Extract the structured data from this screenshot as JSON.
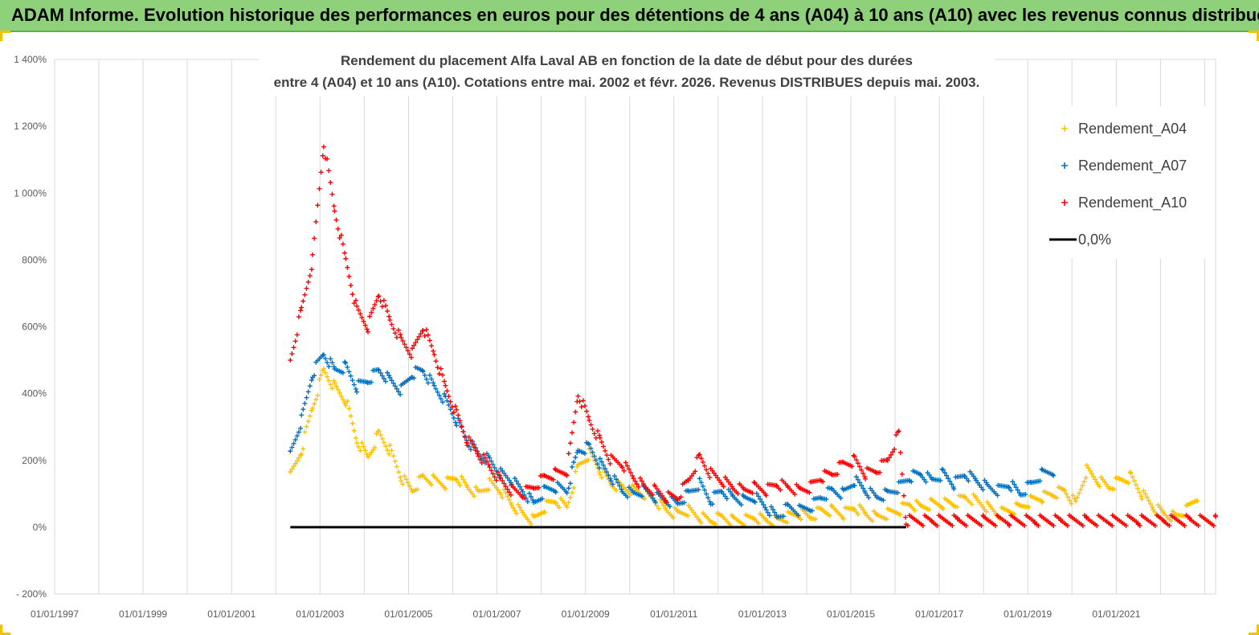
{
  "header": {
    "title": "ADAM Informe. Evolution historique des performances en euros pour des détentions de 4 ans (A04) à 10 ans (A10) avec les revenus connus distribués"
  },
  "chart_data": {
    "type": "scatter",
    "title_lines": [
      "Rendement du placement Alfa Laval AB en fonction de la date de début pour des durées",
      "entre 4 (A04) et 10 ans (A10). Cotations entre mai. 2002 et févr. 2026. Revenus DISTRIBUES depuis mai. 2003."
    ],
    "xlim": [
      "1997-01-01",
      "2023-04-01"
    ],
    "ylim": [
      -200,
      1400
    ],
    "x_ticks": [
      "01/01/1997",
      "01/01/1999",
      "01/01/2001",
      "01/01/2003",
      "01/01/2005",
      "01/01/2007",
      "01/01/2009",
      "01/01/2011",
      "01/01/2013",
      "01/01/2015",
      "01/01/2017",
      "01/01/2019",
      "01/01/2021"
    ],
    "y_ticks": [
      {
        "value": 1400,
        "label": "1 400%"
      },
      {
        "value": 1200,
        "label": "1 200%"
      },
      {
        "value": 1000,
        "label": "1 000%"
      },
      {
        "value": 800,
        "label": "800%"
      },
      {
        "value": 600,
        "label": "600%"
      },
      {
        "value": 400,
        "label": "400%"
      },
      {
        "value": 200,
        "label": "200%"
      },
      {
        "value": 0,
        "label": "0%"
      },
      {
        "value": -200,
        "label": "- 200%"
      }
    ],
    "grid": "vertical",
    "legend_position": "top-right",
    "series": [
      {
        "name": "Rendement_A04",
        "color": "#ffc000",
        "marker": "+",
        "points": [
          [
            "2002-05-01",
            150
          ],
          [
            "2002-08-01",
            230
          ],
          [
            "2002-11-01",
            360
          ],
          [
            "2003-02-01",
            470
          ],
          [
            "2003-05-01",
            420
          ],
          [
            "2003-08-01",
            380
          ],
          [
            "2003-11-01",
            260
          ],
          [
            "2004-02-01",
            210
          ],
          [
            "2004-05-01",
            280
          ],
          [
            "2004-08-01",
            230
          ],
          [
            "2004-11-01",
            150
          ],
          [
            "2005-02-01",
            110
          ],
          [
            "2005-05-01",
            150
          ],
          [
            "2005-08-01",
            140
          ],
          [
            "2005-11-01",
            130
          ],
          [
            "2006-02-01",
            150
          ],
          [
            "2006-05-01",
            120
          ],
          [
            "2006-08-01",
            100
          ],
          [
            "2006-11-01",
            130
          ],
          [
            "2007-02-01",
            110
          ],
          [
            "2007-05-01",
            70
          ],
          [
            "2007-08-01",
            40
          ],
          [
            "2007-11-01",
            20
          ],
          [
            "2008-02-01",
            60
          ],
          [
            "2008-05-01",
            80
          ],
          [
            "2008-08-01",
            60
          ],
          [
            "2008-11-01",
            180
          ],
          [
            "2009-02-01",
            220
          ],
          [
            "2009-05-01",
            170
          ],
          [
            "2009-08-01",
            130
          ],
          [
            "2009-11-01",
            120
          ],
          [
            "2010-02-01",
            110
          ],
          [
            "2010-05-01",
            100
          ],
          [
            "2010-08-01",
            80
          ],
          [
            "2010-11-01",
            50
          ],
          [
            "2011-02-01",
            40
          ],
          [
            "2011-05-01",
            50
          ],
          [
            "2011-08-01",
            30
          ],
          [
            "2011-11-01",
            20
          ],
          [
            "2012-02-01",
            30
          ],
          [
            "2012-05-01",
            20
          ],
          [
            "2012-08-01",
            20
          ],
          [
            "2012-11-01",
            30
          ],
          [
            "2013-02-01",
            20
          ],
          [
            "2013-05-01",
            20
          ],
          [
            "2013-08-01",
            30
          ],
          [
            "2013-11-01",
            40
          ],
          [
            "2014-02-01",
            30
          ],
          [
            "2014-05-01",
            50
          ],
          [
            "2014-08-01",
            50
          ],
          [
            "2014-11-01",
            40
          ],
          [
            "2015-02-01",
            60
          ],
          [
            "2015-05-01",
            40
          ],
          [
            "2015-08-01",
            30
          ],
          [
            "2015-11-01",
            40
          ],
          [
            "2016-02-01",
            50
          ],
          [
            "2016-05-01",
            70
          ],
          [
            "2016-08-01",
            60
          ],
          [
            "2016-11-01",
            70
          ],
          [
            "2017-02-01",
            70
          ],
          [
            "2017-05-01",
            70
          ],
          [
            "2017-08-01",
            90
          ],
          [
            "2017-11-01",
            80
          ],
          [
            "2018-02-01",
            60
          ],
          [
            "2018-05-01",
            40
          ],
          [
            "2018-08-01",
            50
          ],
          [
            "2018-11-01",
            60
          ],
          [
            "2019-02-01",
            80
          ],
          [
            "2019-05-01",
            90
          ],
          [
            "2019-08-01",
            100
          ],
          [
            "2019-11-01",
            110
          ],
          [
            "2020-02-01",
            70
          ],
          [
            "2020-05-01",
            170
          ],
          [
            "2020-08-01",
            140
          ],
          [
            "2020-11-01",
            120
          ],
          [
            "2021-02-01",
            140
          ],
          [
            "2021-05-01",
            150
          ],
          [
            "2021-08-01",
            100
          ],
          [
            "2021-11-01",
            60
          ],
          [
            "2022-02-01",
            40
          ],
          [
            "2022-05-01",
            30
          ],
          [
            "2022-08-01",
            50
          ],
          [
            "2022-11-01",
            90
          ]
        ]
      },
      {
        "name": "Rendement_A07",
        "color": "#0070c0",
        "marker": "+",
        "points": [
          [
            "2002-05-01",
            220
          ],
          [
            "2002-08-01",
            320
          ],
          [
            "2002-11-01",
            460
          ],
          [
            "2003-02-01",
            520
          ],
          [
            "2003-05-01",
            470
          ],
          [
            "2003-08-01",
            480
          ],
          [
            "2003-11-01",
            420
          ],
          [
            "2004-02-01",
            440
          ],
          [
            "2004-05-01",
            470
          ],
          [
            "2004-08-01",
            440
          ],
          [
            "2004-11-01",
            410
          ],
          [
            "2005-02-01",
            460
          ],
          [
            "2005-05-01",
            470
          ],
          [
            "2005-08-01",
            420
          ],
          [
            "2005-11-01",
            380
          ],
          [
            "2006-02-01",
            320
          ],
          [
            "2006-05-01",
            260
          ],
          [
            "2006-08-01",
            220
          ],
          [
            "2006-11-01",
            200
          ],
          [
            "2007-02-01",
            160
          ],
          [
            "2007-05-01",
            140
          ],
          [
            "2007-08-01",
            110
          ],
          [
            "2007-11-01",
            70
          ],
          [
            "2008-02-01",
            110
          ],
          [
            "2008-05-01",
            120
          ],
          [
            "2008-08-01",
            110
          ],
          [
            "2008-11-01",
            230
          ],
          [
            "2009-02-01",
            240
          ],
          [
            "2009-05-01",
            190
          ],
          [
            "2009-08-01",
            150
          ],
          [
            "2009-11-01",
            110
          ],
          [
            "2010-02-01",
            100
          ],
          [
            "2010-05-01",
            110
          ],
          [
            "2010-08-01",
            90
          ],
          [
            "2010-11-01",
            80
          ],
          [
            "2011-02-01",
            70
          ],
          [
            "2011-05-01",
            100
          ],
          [
            "2011-08-01",
            130
          ],
          [
            "2011-11-01",
            80
          ],
          [
            "2012-02-01",
            110
          ],
          [
            "2012-05-01",
            90
          ],
          [
            "2012-08-01",
            80
          ],
          [
            "2012-11-01",
            90
          ],
          [
            "2013-02-01",
            60
          ],
          [
            "2013-05-01",
            30
          ],
          [
            "2013-08-01",
            60
          ],
          [
            "2013-11-01",
            50
          ],
          [
            "2014-02-01",
            60
          ],
          [
            "2014-05-01",
            90
          ],
          [
            "2014-08-01",
            110
          ],
          [
            "2014-11-01",
            100
          ],
          [
            "2015-02-01",
            140
          ],
          [
            "2015-05-01",
            110
          ],
          [
            "2015-08-01",
            90
          ],
          [
            "2015-11-01",
            100
          ],
          [
            "2016-02-01",
            120
          ],
          [
            "2016-05-01",
            150
          ],
          [
            "2016-08-01",
            160
          ],
          [
            "2016-11-01",
            140
          ],
          [
            "2017-02-01",
            160
          ],
          [
            "2017-05-01",
            130
          ],
          [
            "2017-08-01",
            160
          ],
          [
            "2017-11-01",
            140
          ],
          [
            "2018-02-01",
            120
          ],
          [
            "2018-05-01",
            110
          ],
          [
            "2018-08-01",
            130
          ],
          [
            "2018-11-01",
            100
          ],
          [
            "2019-02-01",
            130
          ],
          [
            "2019-05-01",
            160
          ],
          [
            "2019-08-01",
            170
          ]
        ]
      },
      {
        "name": "Rendement_A10",
        "color": "#ff0000",
        "marker": "+",
        "points": [
          [
            "2002-05-01",
            500
          ],
          [
            "2002-08-01",
            650
          ],
          [
            "2002-11-01",
            800
          ],
          [
            "2003-02-01",
            1150
          ],
          [
            "2003-05-01",
            950
          ],
          [
            "2003-08-01",
            800
          ],
          [
            "2003-11-01",
            650
          ],
          [
            "2004-02-01",
            600
          ],
          [
            "2004-05-01",
            700
          ],
          [
            "2004-08-01",
            620
          ],
          [
            "2004-11-01",
            560
          ],
          [
            "2005-02-01",
            520
          ],
          [
            "2005-05-01",
            600
          ],
          [
            "2005-08-01",
            520
          ],
          [
            "2005-11-01",
            420
          ],
          [
            "2006-02-01",
            340
          ],
          [
            "2006-05-01",
            260
          ],
          [
            "2006-08-01",
            220
          ],
          [
            "2006-11-01",
            180
          ],
          [
            "2007-02-01",
            140
          ],
          [
            "2007-05-01",
            110
          ],
          [
            "2007-08-01",
            100
          ],
          [
            "2007-11-01",
            120
          ],
          [
            "2008-02-01",
            150
          ],
          [
            "2008-05-01",
            160
          ],
          [
            "2008-08-01",
            170
          ],
          [
            "2008-11-01",
            400
          ],
          [
            "2009-02-01",
            320
          ],
          [
            "2009-05-01",
            260
          ],
          [
            "2009-08-01",
            200
          ],
          [
            "2009-11-01",
            190
          ],
          [
            "2010-02-01",
            150
          ],
          [
            "2010-05-01",
            120
          ],
          [
            "2010-08-01",
            110
          ],
          [
            "2010-11-01",
            90
          ],
          [
            "2011-02-01",
            90
          ],
          [
            "2011-05-01",
            140
          ],
          [
            "2011-08-01",
            210
          ],
          [
            "2011-11-01",
            160
          ],
          [
            "2012-02-01",
            140
          ],
          [
            "2012-05-01",
            120
          ],
          [
            "2012-08-01",
            110
          ],
          [
            "2012-11-01",
            120
          ],
          [
            "2013-02-01",
            110
          ],
          [
            "2013-05-01",
            130
          ],
          [
            "2013-08-01",
            120
          ],
          [
            "2013-11-01",
            110
          ],
          [
            "2014-02-01",
            120
          ],
          [
            "2014-05-01",
            150
          ],
          [
            "2014-08-01",
            160
          ],
          [
            "2014-11-01",
            190
          ],
          [
            "2015-02-01",
            200
          ],
          [
            "2015-05-01",
            160
          ],
          [
            "2015-08-01",
            170
          ],
          [
            "2015-11-01",
            200
          ],
          [
            "2016-02-01",
            280
          ],
          [
            "2016-04-01",
            20
          ],
          [
            "2016-11-01",
            20
          ],
          [
            "2017-06-01",
            20
          ],
          [
            "2018-01-01",
            20
          ],
          [
            "2018-08-01",
            20
          ],
          [
            "2019-03-01",
            20
          ],
          [
            "2019-10-01",
            20
          ],
          [
            "2020-05-01",
            20
          ],
          [
            "2020-12-01",
            20
          ],
          [
            "2021-07-01",
            20
          ],
          [
            "2022-02-01",
            20
          ],
          [
            "2022-09-01",
            20
          ],
          [
            "2023-04-01",
            20
          ]
        ]
      },
      {
        "name": "0,0%",
        "color": "#000000",
        "marker": "line",
        "points": [
          [
            "2002-05-01",
            0
          ],
          [
            "2016-04-01",
            0
          ]
        ]
      }
    ]
  }
}
